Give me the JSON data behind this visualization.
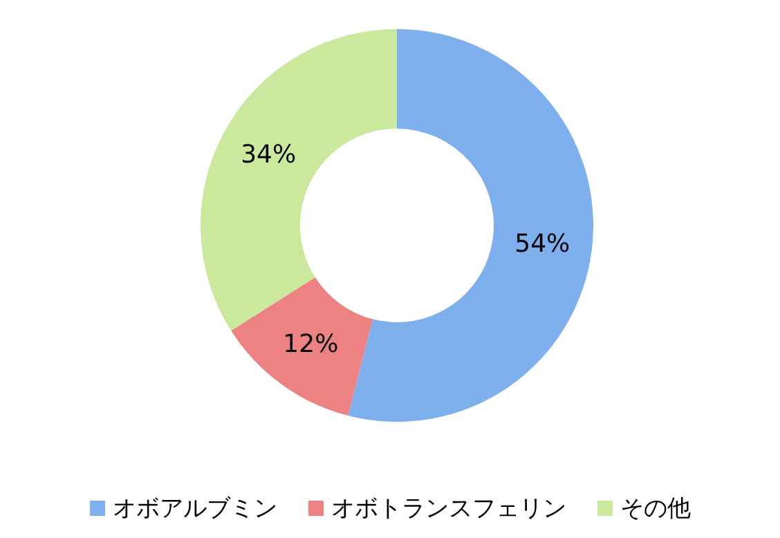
{
  "chart_data": {
    "type": "donut",
    "categories": [
      "オボアルブミン",
      "オボトランスフェリン",
      "その他"
    ],
    "values": [
      54,
      12,
      34
    ],
    "colors": [
      "#7fb0ee",
      "#ec8282",
      "#cbe99c"
    ],
    "value_labels": [
      "54%",
      "12%",
      "34%"
    ],
    "legend": "bottom"
  }
}
